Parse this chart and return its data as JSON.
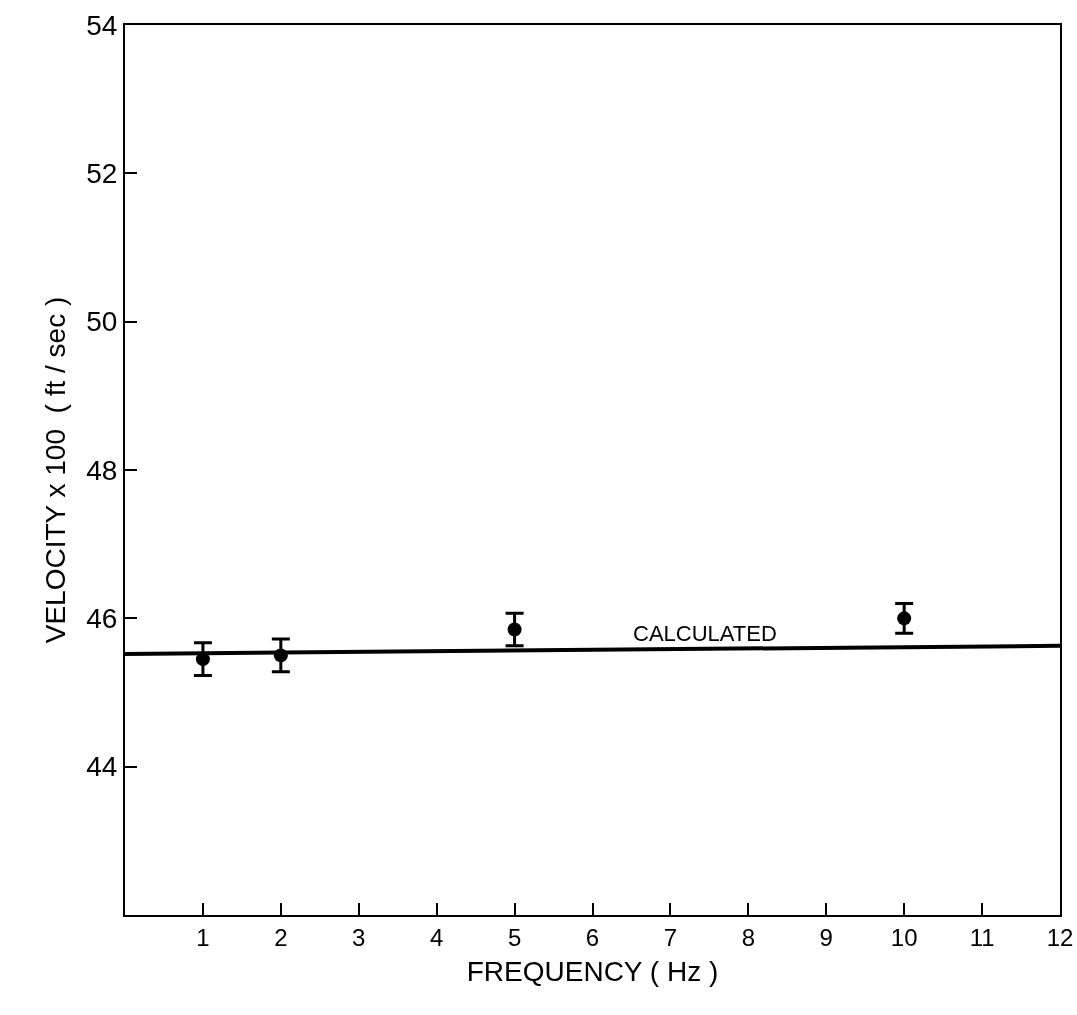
{
  "chart_data": {
    "type": "scatter",
    "xlabel": "FREQUENCY ( Hz )",
    "ylabel": "VELOCITY x 100  ( ft / sec )",
    "x": [
      1,
      2,
      5,
      10
    ],
    "series": [
      {
        "color": "#000000",
        "values": [
          45.45,
          45.5,
          45.85,
          46.0
        ],
        "errors": [
          0.22,
          0.22,
          0.22,
          0.2
        ]
      },
      {
        "type": "line",
        "color": "#000000",
        "x": [
          0,
          12
        ],
        "values": [
          45.52,
          45.63
        ],
        "marker": "none"
      }
    ],
    "annotations": [
      {
        "text": "CALCULATED",
        "x": 7.45,
        "y": 45.6
      }
    ],
    "xlim": [
      0,
      12
    ],
    "xticks": [
      1,
      2,
      3,
      4,
      5,
      6,
      7,
      8,
      9,
      10,
      11,
      12
    ],
    "ylim": [
      42,
      54
    ],
    "yticks": [
      44,
      46,
      48,
      50,
      52,
      54
    ],
    "marker": "circle",
    "grid": false
  }
}
